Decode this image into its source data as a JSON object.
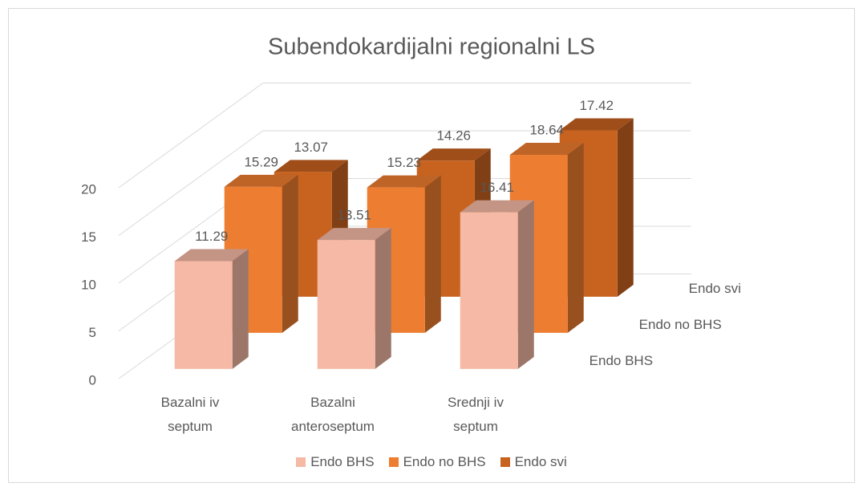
{
  "chart_data": {
    "type": "bar",
    "title": "Subendokardijalni regionalni LS",
    "categories": [
      "Bazalni iv septum",
      "Bazalni anteroseptum",
      "Srednji iv septum"
    ],
    "series": [
      {
        "name": "Endo BHS",
        "color": "#f5b9a5",
        "values": [
          11.29,
          13.51,
          16.41
        ]
      },
      {
        "name": "Endo no BHS",
        "color": "#ed7d31",
        "values": [
          15.29,
          15.23,
          18.64
        ]
      },
      {
        "name": "Endo svi",
        "color": "#c8621f",
        "values": [
          13.07,
          14.26,
          17.42
        ]
      }
    ],
    "ylim": [
      0,
      20
    ],
    "yticks": [
      0,
      5,
      10,
      15,
      20
    ],
    "grid": true,
    "legend": "bottom"
  }
}
